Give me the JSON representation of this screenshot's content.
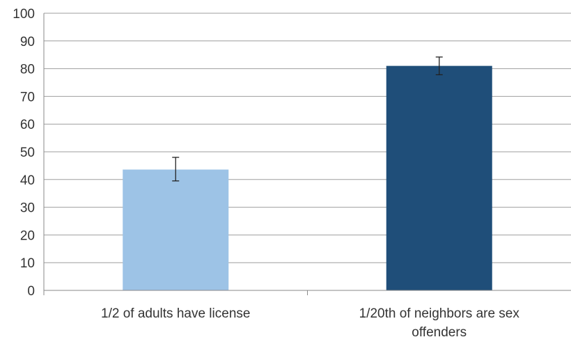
{
  "chart_data": {
    "type": "bar",
    "categories": [
      [
        "1/2 of adults have license"
      ],
      [
        "1/20th of neighbors are sex",
        "offenders"
      ]
    ],
    "values": [
      43.6,
      81.0
    ],
    "error_low": [
      39.5,
      77.8
    ],
    "error_high": [
      48.0,
      84.2
    ],
    "bar_colors": [
      "#9dc3e6",
      "#1f4e79"
    ],
    "ylim": [
      0,
      100
    ],
    "yticks": [
      0,
      10,
      20,
      30,
      40,
      50,
      60,
      70,
      80,
      90,
      100
    ],
    "grid": true,
    "title": "",
    "xlabel": "",
    "ylabel": ""
  }
}
